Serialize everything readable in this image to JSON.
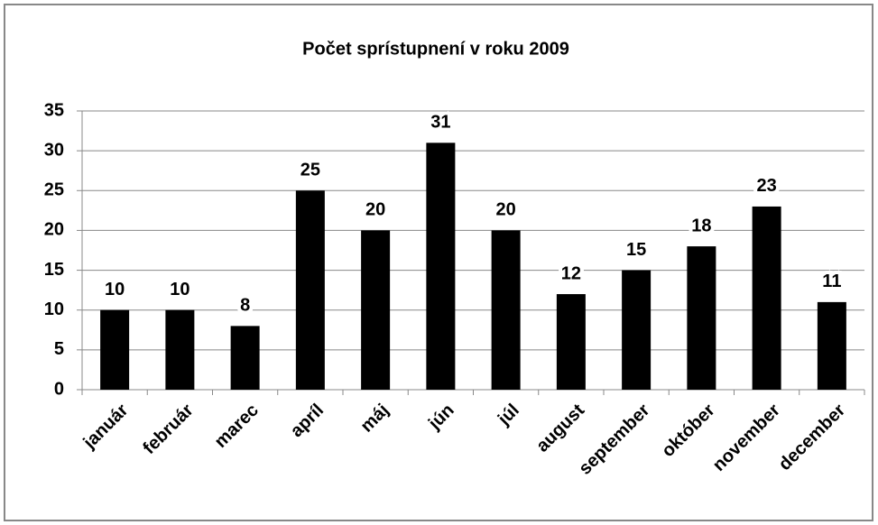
{
  "chart_data": {
    "type": "bar",
    "title": "Počet sprístupnení v roku 2009",
    "categories": [
      "január",
      "február",
      "marec",
      "apríl",
      "máj",
      "jún",
      "júl",
      "august",
      "september",
      "október",
      "november",
      "december"
    ],
    "values": [
      10,
      10,
      8,
      25,
      20,
      31,
      20,
      12,
      15,
      18,
      23,
      11
    ],
    "color": "#000000",
    "ylim": [
      0,
      35
    ],
    "yticks": [
      0,
      5,
      10,
      15,
      20,
      25,
      30,
      35
    ],
    "grid": true
  }
}
